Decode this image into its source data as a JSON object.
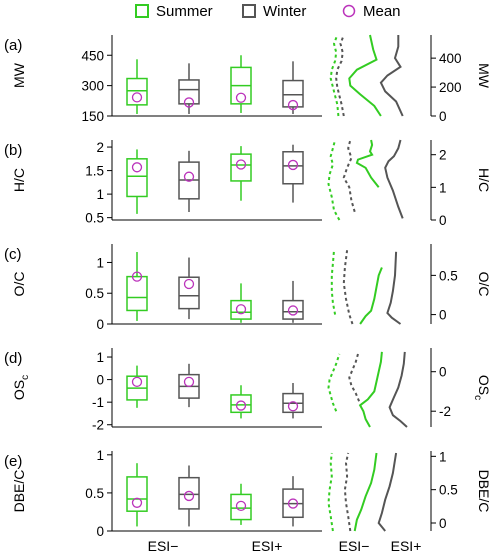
{
  "colors": {
    "summer": "#33cc22",
    "winter": "#555555",
    "mean": "#bb33bb",
    "axis": "#000000"
  },
  "legend": [
    {
      "label": "Summer",
      "marker": "square",
      "color": "#33cc22"
    },
    {
      "label": "Winter",
      "marker": "square",
      "color": "#555555"
    },
    {
      "label": "Mean",
      "marker": "circle",
      "color": "#bb33bb"
    }
  ],
  "chart_data": {
    "type": "box",
    "groups": [
      "ESI−",
      "ESI+"
    ],
    "seasons": [
      "Summer",
      "Winter"
    ],
    "right_xlabels": [
      "ESI−",
      "ESI+"
    ],
    "panels": [
      {
        "id": "a",
        "label": "(a)",
        "ylabel": "MW",
        "left_ylim": [
          150,
          550
        ],
        "left_ticks": [
          150,
          300,
          450
        ],
        "right_ylim": [
          0,
          560
        ],
        "right_ticks": [
          0,
          200,
          400
        ],
        "boxes": [
          {
            "group": "ESI−",
            "season": "Summer",
            "min": 160,
            "q1": 205,
            "median": 275,
            "q3": 335,
            "max": 430,
            "mean": 242
          },
          {
            "group": "ESI−",
            "season": "Winter",
            "min": 160,
            "q1": 210,
            "median": 280,
            "q3": 328,
            "max": 410,
            "mean": 217
          },
          {
            "group": "ESI+",
            "season": "Summer",
            "min": 165,
            "q1": 210,
            "median": 300,
            "q3": 390,
            "max": 450,
            "mean": 240
          },
          {
            "group": "ESI+",
            "season": "Winter",
            "min": 160,
            "q1": 195,
            "median": 255,
            "q3": 325,
            "max": 420,
            "mean": 204
          }
        ]
      },
      {
        "id": "b",
        "label": "(b)",
        "ylabel": "H/C",
        "left_ylim": [
          0.45,
          2.15
        ],
        "left_ticks": [
          0.5,
          1.0,
          1.5,
          2.0
        ],
        "right_ylim": [
          0,
          2.45
        ],
        "right_ticks": [
          0,
          1,
          2
        ],
        "boxes": [
          {
            "group": "ESI−",
            "season": "Summer",
            "min": 0.58,
            "q1": 0.95,
            "median": 1.38,
            "q3": 1.75,
            "max": 1.95,
            "mean": 1.57
          },
          {
            "group": "ESI−",
            "season": "Winter",
            "min": 0.62,
            "q1": 0.9,
            "median": 1.3,
            "q3": 1.68,
            "max": 1.92,
            "mean": 1.37
          },
          {
            "group": "ESI+",
            "season": "Summer",
            "min": 0.86,
            "q1": 1.28,
            "median": 1.62,
            "q3": 1.85,
            "max": 2.02,
            "mean": 1.63
          },
          {
            "group": "ESI+",
            "season": "Winter",
            "min": 0.82,
            "q1": 1.22,
            "median": 1.6,
            "q3": 1.9,
            "max": 2.05,
            "mean": 1.62
          }
        ]
      },
      {
        "id": "c",
        "label": "(c)",
        "ylabel": "O/C",
        "left_ylim": [
          0,
          1.3
        ],
        "left_ticks": [
          0.0,
          0.5,
          1.0
        ],
        "right_ylim": [
          -0.12,
          0.9
        ],
        "right_ticks": [
          0.0,
          0.5
        ],
        "boxes": [
          {
            "group": "ESI−",
            "season": "Summer",
            "min": 0.05,
            "q1": 0.22,
            "median": 0.43,
            "q3": 0.77,
            "max": 1.17,
            "mean": 0.77
          },
          {
            "group": "ESI−",
            "season": "Winter",
            "min": 0.08,
            "q1": 0.25,
            "median": 0.46,
            "q3": 0.76,
            "max": 1.08,
            "mean": 0.65
          },
          {
            "group": "ESI+",
            "season": "Summer",
            "min": 0.02,
            "q1": 0.08,
            "median": 0.19,
            "q3": 0.38,
            "max": 0.66,
            "mean": 0.24
          },
          {
            "group": "ESI+",
            "season": "Winter",
            "min": 0.02,
            "q1": 0.08,
            "median": 0.2,
            "q3": 0.38,
            "max": 0.7,
            "mean": 0.22
          }
        ]
      },
      {
        "id": "d",
        "label": "(d)",
        "ylabel": "OS",
        "ylabel_sub": "c",
        "left_ylim": [
          -2.1,
          1.4
        ],
        "left_ticks": [
          -2,
          -1,
          0,
          1
        ],
        "right_ylim": [
          -2.8,
          1.2
        ],
        "right_ticks": [
          -2,
          0
        ],
        "boxes": [
          {
            "group": "ESI−",
            "season": "Summer",
            "min": -1.25,
            "q1": -0.9,
            "median": -0.38,
            "q3": 0.15,
            "max": 0.62,
            "mean": -0.1
          },
          {
            "group": "ESI−",
            "season": "Winter",
            "min": -1.22,
            "q1": -0.82,
            "median": -0.3,
            "q3": 0.22,
            "max": 0.7,
            "mean": -0.1
          },
          {
            "group": "ESI+",
            "season": "Summer",
            "min": -1.72,
            "q1": -1.45,
            "median": -1.12,
            "q3": -0.68,
            "max": -0.25,
            "mean": -1.15
          },
          {
            "group": "ESI+",
            "season": "Winter",
            "min": -1.72,
            "q1": -1.45,
            "median": -1.05,
            "q3": -0.62,
            "max": -0.15,
            "mean": -1.18
          }
        ]
      },
      {
        "id": "e",
        "label": "(e)",
        "ylabel": "DBE/C",
        "left_ylim": [
          0,
          1.05
        ],
        "left_ticks": [
          0.0,
          0.5,
          1.0
        ],
        "right_ylim": [
          -0.12,
          1.08
        ],
        "right_ticks": [
          0.0,
          0.5,
          1.0
        ],
        "boxes": [
          {
            "group": "ESI−",
            "season": "Summer",
            "min": 0.06,
            "q1": 0.26,
            "median": 0.42,
            "q3": 0.71,
            "max": 0.89,
            "mean": 0.37
          },
          {
            "group": "ESI−",
            "season": "Winter",
            "min": 0.06,
            "q1": 0.29,
            "median": 0.48,
            "q3": 0.7,
            "max": 0.86,
            "mean": 0.46
          },
          {
            "group": "ESI+",
            "season": "Summer",
            "min": 0.08,
            "q1": 0.15,
            "median": 0.3,
            "q3": 0.48,
            "max": 0.62,
            "mean": 0.33
          },
          {
            "group": "ESI+",
            "season": "Winter",
            "min": 0.06,
            "q1": 0.18,
            "median": 0.36,
            "q3": 0.55,
            "max": 0.72,
            "mean": 0.36
          }
        ]
      }
    ],
    "distribution_curves": [
      {
        "panel": "a",
        "esi_minus": {
          "summer": [
            [
              0,
              15
            ],
            [
              80,
              14
            ],
            [
              140,
              12
            ],
            [
              200,
              10
            ],
            [
              260,
              8
            ],
            [
              320,
              9
            ],
            [
              380,
              12
            ],
            [
              440,
              13
            ],
            [
              500,
              11
            ],
            [
              560,
              14
            ]
          ],
          "winter": [
            [
              0,
              20
            ],
            [
              80,
              18
            ],
            [
              140,
              16
            ],
            [
              200,
              14
            ],
            [
              260,
              13
            ],
            [
              320,
              14
            ],
            [
              380,
              18
            ],
            [
              440,
              19
            ],
            [
              500,
              17
            ],
            [
              560,
              20
            ]
          ]
        },
        "esi_plus": {
          "summer": [
            [
              0,
              54
            ],
            [
              70,
              48
            ],
            [
              150,
              35
            ],
            [
              210,
              26
            ],
            [
              260,
              25
            ],
            [
              320,
              32
            ],
            [
              390,
              50
            ],
            [
              460,
              47
            ],
            [
              560,
              44
            ]
          ],
          "winter": [
            [
              0,
              74
            ],
            [
              100,
              68
            ],
            [
              170,
              58
            ],
            [
              230,
              54
            ],
            [
              280,
              60
            ],
            [
              340,
              72
            ],
            [
              400,
              67
            ],
            [
              480,
              70
            ],
            [
              560,
              70
            ]
          ]
        }
      },
      {
        "panel": "b",
        "esi_minus": {
          "summer": [
            [
              0,
              16
            ],
            [
              0.3,
              11
            ],
            [
              0.7,
              9
            ],
            [
              1.1,
              6
            ],
            [
              1.4,
              7
            ],
            [
              1.7,
              10
            ],
            [
              1.95,
              8
            ],
            [
              2.2,
              10
            ],
            [
              2.45,
              12
            ]
          ],
          "winter": [
            [
              0.25,
              30
            ],
            [
              0.6,
              27
            ],
            [
              1.0,
              25
            ],
            [
              1.3,
              20
            ],
            [
              1.6,
              23
            ],
            [
              1.9,
              27
            ],
            [
              2.2,
              24
            ],
            [
              2.45,
              26
            ]
          ]
        },
        "esi_plus": {
          "summer": [
            [
              1.0,
              52
            ],
            [
              1.3,
              45
            ],
            [
              1.6,
              40
            ],
            [
              1.75,
              32
            ],
            [
              1.85,
              33
            ],
            [
              2.0,
              46
            ],
            [
              2.1,
              44
            ],
            [
              2.3,
              46
            ],
            [
              2.45,
              45
            ]
          ],
          "winter": [
            [
              0.05,
              74
            ],
            [
              0.4,
              70
            ],
            [
              0.9,
              65
            ],
            [
              1.3,
              60
            ],
            [
              1.6,
              58
            ],
            [
              1.8,
              61
            ],
            [
              1.95,
              66
            ],
            [
              2.2,
              70
            ],
            [
              2.45,
              72
            ]
          ]
        }
      },
      {
        "panel": "c",
        "esi_minus": {
          "summer": [
            [
              0.0,
              12
            ],
            [
              0.15,
              10
            ],
            [
              0.3,
              9
            ],
            [
              0.5,
              9
            ],
            [
              0.65,
              10
            ],
            [
              0.82,
              11
            ]
          ],
          "winter": [
            [
              -0.12,
              28
            ],
            [
              0.0,
              25
            ],
            [
              0.2,
              22
            ],
            [
              0.4,
              20
            ],
            [
              0.6,
              21
            ],
            [
              0.82,
              23
            ]
          ]
        },
        "esi_plus": {
          "summer": [
            [
              -0.12,
              35
            ],
            [
              -0.02,
              40
            ],
            [
              0.05,
              45
            ],
            [
              0.2,
              48
            ],
            [
              0.35,
              50
            ],
            [
              0.5,
              52
            ],
            [
              0.6,
              55
            ]
          ],
          "winter": [
            [
              -0.12,
              72
            ],
            [
              -0.04,
              64
            ],
            [
              0.02,
              60
            ],
            [
              0.15,
              63
            ],
            [
              0.3,
              65
            ],
            [
              0.5,
              67
            ],
            [
              0.8,
              68
            ]
          ]
        }
      },
      {
        "panel": "d",
        "esi_minus": {
          "summer": [
            [
              -2.0,
              13
            ],
            [
              -1.6,
              10
            ],
            [
              -1.2,
              8
            ],
            [
              -0.8,
              6
            ],
            [
              -0.4,
              7
            ],
            [
              0.0,
              10
            ],
            [
              0.4,
              13
            ],
            [
              0.9,
              16
            ]
          ],
          "winter": [
            [
              -1.5,
              34
            ],
            [
              -1.1,
              31
            ],
            [
              -0.7,
              27
            ],
            [
              -0.3,
              25
            ],
            [
              0.1,
              28
            ],
            [
              0.5,
              31
            ],
            [
              0.9,
              33
            ]
          ]
        },
        "esi_plus": {
          "summer": [
            [
              -2.8,
              44
            ],
            [
              -2.4,
              40
            ],
            [
              -2.0,
              38
            ],
            [
              -1.7,
              35
            ],
            [
              -1.4,
              42
            ],
            [
              -1.0,
              48
            ],
            [
              -0.5,
              50
            ],
            [
              0.0,
              52
            ],
            [
              0.5,
              54
            ],
            [
              1.0,
              55
            ]
          ],
          "winter": [
            [
              -2.8,
              78
            ],
            [
              -2.5,
              72
            ],
            [
              -2.2,
              65
            ],
            [
              -1.8,
              62
            ],
            [
              -1.3,
              66
            ],
            [
              -0.8,
              70
            ],
            [
              -0.2,
              73
            ],
            [
              0.4,
              75
            ],
            [
              1.0,
              76
            ]
          ]
        }
      },
      {
        "panel": "e",
        "esi_minus": {
          "summer": [
            [
              -0.12,
              10
            ],
            [
              0.1,
              8
            ],
            [
              0.3,
              6
            ],
            [
              0.5,
              7
            ],
            [
              0.7,
              9
            ],
            [
              0.9,
              8
            ],
            [
              1.05,
              9
            ]
          ],
          "winter": [
            [
              -0.12,
              26
            ],
            [
              0.1,
              24
            ],
            [
              0.3,
              22
            ],
            [
              0.5,
              21
            ],
            [
              0.7,
              23
            ],
            [
              0.9,
              22
            ],
            [
              1.05,
              24
            ]
          ]
        },
        "esi_plus": {
          "summer": [
            [
              -0.12,
              30
            ],
            [
              0.05,
              32
            ],
            [
              0.2,
              36
            ],
            [
              0.4,
              40
            ],
            [
              0.6,
              45
            ],
            [
              0.8,
              48
            ],
            [
              1.05,
              50
            ]
          ],
          "winter": [
            [
              -0.12,
              58
            ],
            [
              0.0,
              52
            ],
            [
              0.15,
              55
            ],
            [
              0.35,
              58
            ],
            [
              0.55,
              62
            ],
            [
              0.75,
              65
            ],
            [
              1.05,
              68
            ]
          ]
        }
      }
    ]
  }
}
